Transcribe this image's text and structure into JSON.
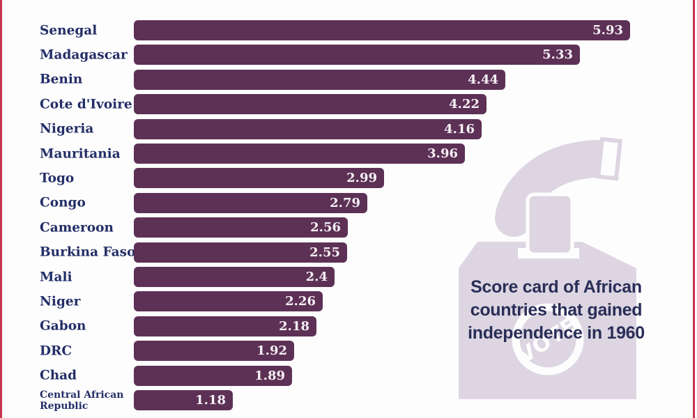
{
  "chart_data": {
    "type": "bar",
    "orientation": "horizontal",
    "title": "Score card of African countries that gained independence in 1960",
    "categories": [
      "Senegal",
      "Madagascar",
      "Benin",
      "Cote d'Ivoire",
      "Nigeria",
      "Mauritania",
      "Togo",
      "Congo",
      "Cameroon",
      "Burkina Faso",
      "Mali",
      "Niger",
      "Gabon",
      "DRC",
      "Chad",
      "Central African Republic"
    ],
    "values": [
      5.93,
      5.33,
      4.44,
      4.22,
      4.16,
      3.96,
      2.99,
      2.79,
      2.56,
      2.55,
      2.4,
      2.26,
      2.18,
      1.92,
      1.89,
      1.18
    ],
    "value_labels": [
      "5.93",
      "5.33",
      "4.44",
      "4.22",
      "4.16",
      "3.96",
      "2.99",
      "2.79",
      "2.56",
      "2.55",
      "2.4",
      "2.26",
      "2.18",
      "1.92",
      "1.89",
      "1.18"
    ],
    "xlim": [
      0,
      6.7
    ],
    "grid": false,
    "legend": false,
    "bar_color": "#5d3156",
    "value_label_position": "inside-end",
    "sorted": "descending"
  },
  "title": {
    "lines": [
      "Score card of African",
      "countries that gained",
      "independence in 1960"
    ]
  },
  "watermark": {
    "icon": "ballot-box-icon",
    "stamp_text": "VOTE",
    "color": "#ddd6e2"
  },
  "colors": {
    "bar": "#5d3156",
    "category_label": "#232e66",
    "value_text": "#f6f1f5",
    "title_text": "#292e58",
    "watermark": "#ddd6e2",
    "border": "#c5344e",
    "background": "#fdfdfe"
  }
}
